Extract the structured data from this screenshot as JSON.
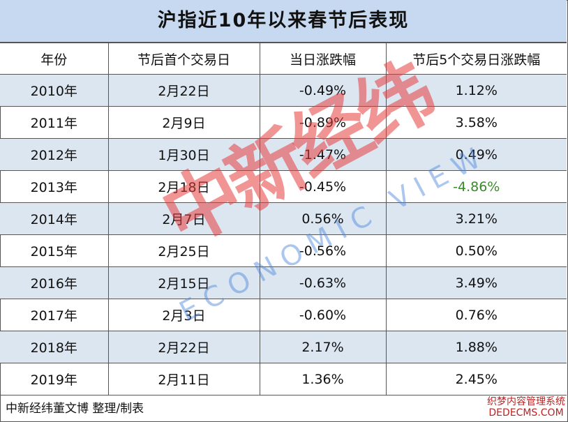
{
  "title": "沪指近10年以来春节后表现",
  "table": {
    "header": [
      "年份",
      "节后首个交易日",
      "当日涨跌幅",
      "节后5个交易日涨跌幅"
    ],
    "rows": [
      [
        "2010年",
        "2月22日",
        "-0.49%",
        "1.12%"
      ],
      [
        "2011年",
        "2月9日",
        "-0.89%",
        "3.58%"
      ],
      [
        "2012年",
        "1月30日",
        "-1.47%",
        "0.49%"
      ],
      [
        "2013年",
        "2月18日",
        "-0.45%",
        "-4.86%"
      ],
      [
        "2014年",
        "2月7日",
        "0.56%",
        "3.21%"
      ],
      [
        "2015年",
        "2月25日",
        "-0.56%",
        "0.50%"
      ],
      [
        "2016年",
        "2月15日",
        "-0.63%",
        "3.49%"
      ],
      [
        "2017年",
        "2月3日",
        "-0.60%",
        "0.76%"
      ],
      [
        "2018年",
        "2月22日",
        "2.17%",
        "1.88%"
      ],
      [
        "2019年",
        "2月11日",
        "1.36%",
        "2.45%"
      ]
    ]
  },
  "footer": "中新经纬董文博 整理/制表",
  "watermark": {
    "brand": "中新经纬",
    "sub": "ECONOMIC VIEW",
    "corner": "织梦内容管理系统",
    "corner_url": "DEDECMS.COM"
  }
}
